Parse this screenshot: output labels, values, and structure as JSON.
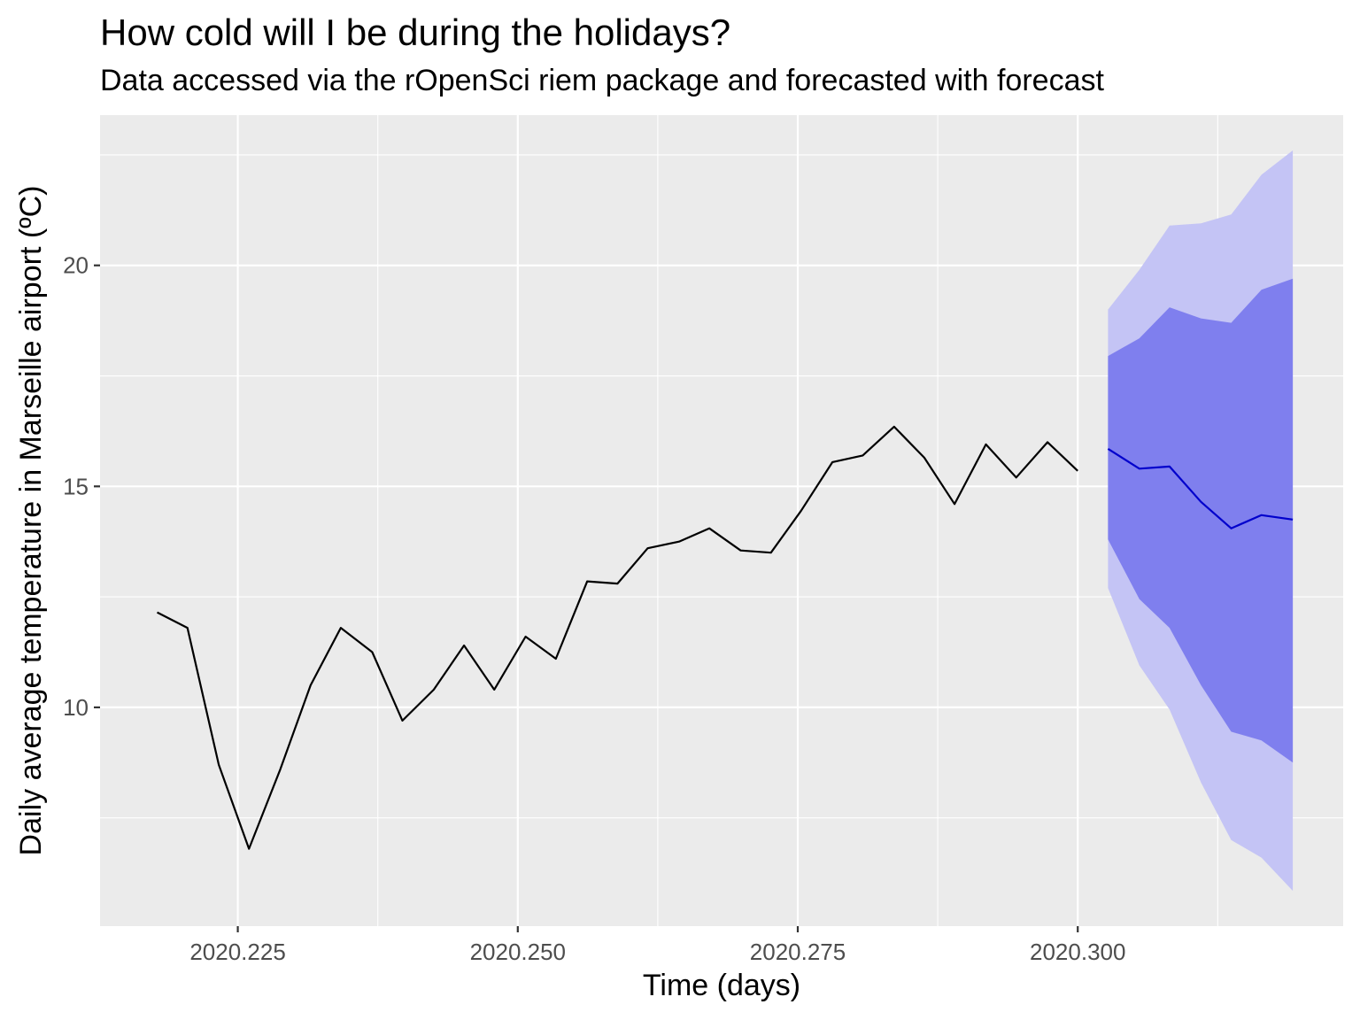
{
  "chart_data": {
    "type": "line",
    "title": "How cold will I be during the holidays?",
    "subtitle": "Data accessed via the rOpenSci riem package and forecasted with forecast",
    "xlabel": "Time (days)",
    "ylabel": "Daily average temperature in Marseille airport (ºC)",
    "xlim": [
      2020.2127,
      2020.3237
    ],
    "ylim": [
      5.05,
      23.4
    ],
    "x_ticks": [
      2020.225,
      2020.25,
      2020.275,
      2020.3
    ],
    "x_tick_labels": [
      "2020.225",
      "2020.250",
      "2020.275",
      "2020.300"
    ],
    "y_ticks": [
      10,
      15,
      20
    ],
    "y_tick_labels": [
      "10",
      "15",
      "20"
    ],
    "grid": true,
    "legend": "none",
    "colors": {
      "panel": "#ebebeb",
      "grid": "#ffffff",
      "observed": "#000000",
      "forecast": "#0000cc",
      "band80": "#7f7fee",
      "band95": "#c4c4f5"
    },
    "series": [
      {
        "x": [
          2020.2178,
          2020.2205,
          2020.2233,
          2020.226,
          2020.2288,
          2020.2315,
          2020.2342,
          2020.237,
          2020.2397,
          2020.2425,
          2020.2452,
          2020.2479,
          2020.2507,
          2020.2534,
          2020.2562,
          2020.2589,
          2020.2616,
          2020.2644,
          2020.2671,
          2020.2699,
          2020.2726,
          2020.2753,
          2020.2781,
          2020.2808,
          2020.2836,
          2020.2863,
          2020.289,
          2020.2918,
          2020.2945,
          2020.2973,
          2020.3
        ],
        "values": [
          12.15,
          11.8,
          8.7,
          6.8,
          8.6,
          10.5,
          11.8,
          11.25,
          9.7,
          10.4,
          11.4,
          10.4,
          11.6,
          11.1,
          12.85,
          12.8,
          13.6,
          13.75,
          14.05,
          13.55,
          13.5,
          14.45,
          15.55,
          15.7,
          16.35,
          15.65,
          14.6,
          15.95,
          15.2,
          16.0,
          15.35
        ]
      },
      {
        "x": [
          2020.3027,
          2020.3055,
          2020.3082,
          2020.311,
          2020.3137,
          2020.3164,
          2020.3192
        ],
        "values": [
          15.85,
          15.4,
          15.45,
          14.65,
          14.05,
          14.35,
          14.25
        ],
        "lo80": [
          13.8,
          12.45,
          11.8,
          10.5,
          9.45,
          9.25,
          8.75
        ],
        "hi80": [
          17.95,
          18.35,
          19.05,
          18.8,
          18.7,
          19.45,
          19.7
        ],
        "lo95": [
          12.7,
          10.95,
          9.95,
          8.3,
          7.0,
          6.6,
          5.85
        ],
        "hi95": [
          19.0,
          19.9,
          20.9,
          20.95,
          21.15,
          22.05,
          22.6
        ]
      }
    ]
  }
}
